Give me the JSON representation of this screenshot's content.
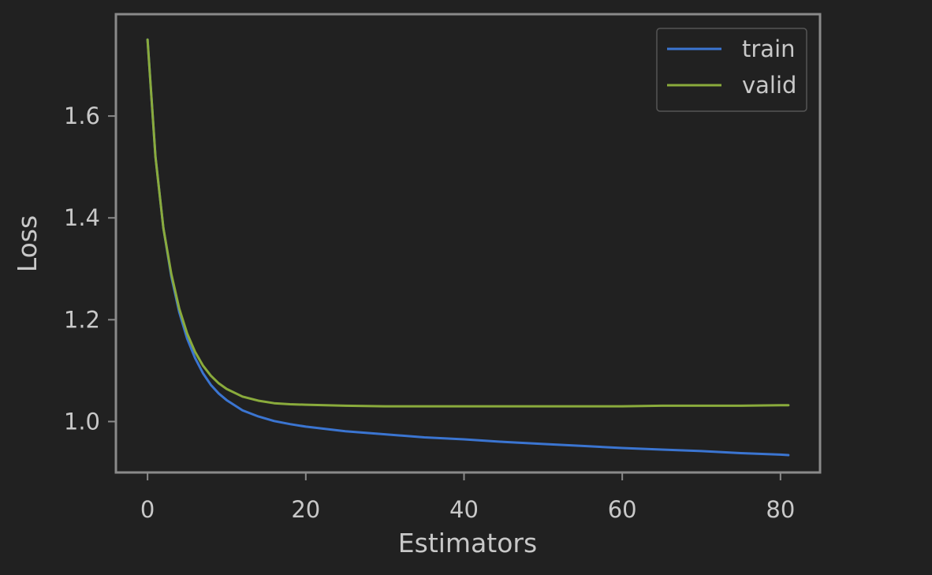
{
  "chart_data": {
    "type": "line",
    "title": "",
    "xlabel": "Estimators",
    "ylabel": "Loss",
    "xlim": [
      -4,
      85
    ],
    "ylim": [
      0.9,
      1.8
    ],
    "xticks": [
      0,
      20,
      40,
      60,
      80
    ],
    "yticks": [
      1.0,
      1.2,
      1.4,
      1.6
    ],
    "grid": false,
    "legend": {
      "placement": "top-right"
    },
    "series": [
      {
        "name": "train",
        "color": "#3b75d1",
        "x": [
          0,
          1,
          2,
          3,
          4,
          5,
          6,
          7,
          8,
          9,
          10,
          12,
          14,
          16,
          18,
          20,
          25,
          30,
          35,
          40,
          45,
          50,
          55,
          60,
          65,
          70,
          75,
          80,
          81
        ],
        "y": [
          1.75,
          1.52,
          1.38,
          1.285,
          1.215,
          1.163,
          1.125,
          1.095,
          1.072,
          1.055,
          1.042,
          1.022,
          1.01,
          1.001,
          0.995,
          0.99,
          0.981,
          0.975,
          0.969,
          0.965,
          0.96,
          0.956,
          0.952,
          0.948,
          0.945,
          0.942,
          0.938,
          0.935,
          0.934
        ]
      },
      {
        "name": "valid",
        "color": "#8aab3c",
        "x": [
          0,
          1,
          2,
          3,
          4,
          5,
          6,
          7,
          8,
          9,
          10,
          12,
          14,
          16,
          18,
          20,
          25,
          30,
          35,
          40,
          45,
          50,
          55,
          60,
          65,
          70,
          75,
          80,
          81
        ],
        "y": [
          1.75,
          1.52,
          1.38,
          1.29,
          1.222,
          1.173,
          1.137,
          1.11,
          1.09,
          1.075,
          1.064,
          1.049,
          1.041,
          1.036,
          1.034,
          1.033,
          1.031,
          1.03,
          1.03,
          1.03,
          1.03,
          1.03,
          1.03,
          1.03,
          1.031,
          1.031,
          1.031,
          1.032,
          1.032
        ]
      }
    ]
  },
  "colors": {
    "background": "#212121",
    "axes": "#8a8a8a",
    "text": "#c8c8c8",
    "legend_border": "#555555"
  }
}
